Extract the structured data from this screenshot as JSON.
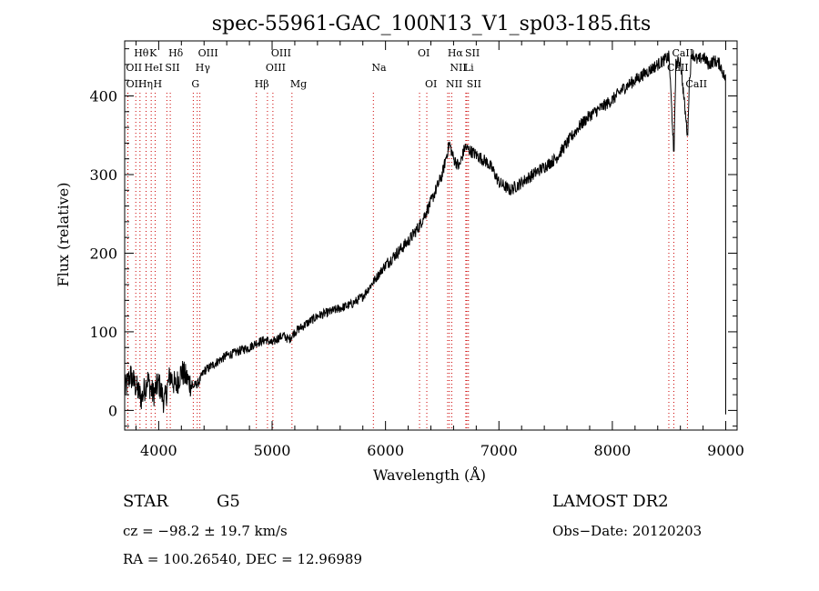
{
  "chart_data": {
    "type": "line",
    "title": "spec-55961-GAC_100N13_V1_sp03-185.fits",
    "xlabel": "Wavelength (Å)",
    "ylabel": "Flux (relative)",
    "xlim": [
      3700,
      9100
    ],
    "ylim": [
      -25,
      470
    ],
    "xticks": [
      4000,
      5000,
      6000,
      7000,
      8000,
      9000
    ],
    "yticks": [
      0,
      100,
      200,
      300,
      400
    ],
    "grid": false,
    "series": [
      {
        "x": [
          3700,
          3750,
          3800,
          3850,
          3900,
          3950,
          4000,
          4050,
          4100,
          4150,
          4200,
          4250,
          4300,
          4350,
          4400,
          4450,
          4500,
          4550,
          4600,
          4650,
          4700,
          4750,
          4800,
          4850,
          4900,
          4950,
          5000,
          5050,
          5100,
          5150,
          5200,
          5300,
          5400,
          5500,
          5600,
          5700,
          5800,
          5900,
          6000,
          6100,
          6200,
          6300,
          6400,
          6500,
          6563,
          6600,
          6650,
          6700,
          6750,
          6800,
          6850,
          6900,
          6950,
          7000,
          7050,
          7100,
          7150,
          7200,
          7300,
          7400,
          7500,
          7600,
          7700,
          7800,
          7900,
          8000,
          8100,
          8200,
          8300,
          8400,
          8450,
          8500,
          8542,
          8560,
          8600,
          8662,
          8680,
          8700,
          8750,
          8800,
          8850,
          8900,
          8950,
          9000
        ],
        "y": [
          25,
          45,
          30,
          15,
          40,
          20,
          35,
          10,
          45,
          30,
          50,
          40,
          30,
          35,
          50,
          55,
          60,
          65,
          70,
          72,
          75,
          78,
          80,
          85,
          88,
          90,
          85,
          92,
          95,
          90,
          100,
          110,
          120,
          125,
          130,
          135,
          145,
          165,
          185,
          200,
          215,
          235,
          265,
          300,
          340,
          320,
          310,
          335,
          330,
          325,
          320,
          315,
          305,
          290,
          285,
          280,
          285,
          290,
          300,
          310,
          320,
          340,
          360,
          375,
          385,
          395,
          410,
          420,
          430,
          440,
          445,
          450,
          330,
          440,
          445,
          350,
          420,
          455,
          445,
          450,
          440,
          445,
          440,
          420
        ]
      }
    ],
    "line_markers": [
      {
        "label": "Hθ",
        "x": 3798,
        "row": 1,
        "color": "#000000"
      },
      {
        "label": "K",
        "x": 3934,
        "row": 1,
        "color": "#000000"
      },
      {
        "label": "Hδ",
        "x": 4102,
        "row": 1,
        "color": "#000000"
      },
      {
        "label": "OIII",
        "x": 4363,
        "row": 1,
        "color": "#000000"
      },
      {
        "label": "OIII",
        "x": 5007,
        "row": 1,
        "color": "#000000"
      },
      {
        "label": "OI",
        "x": 6300,
        "row": 1,
        "color": "#000000"
      },
      {
        "label": "Hα",
        "x": 6563,
        "row": 1,
        "color": "#000000"
      },
      {
        "label": "SII",
        "x": 6717,
        "row": 1,
        "color": "#000000"
      },
      {
        "label": "CaII",
        "x": 8542,
        "row": 1,
        "color": "#000000"
      },
      {
        "label": "OII",
        "x": 3727,
        "row": 2,
        "color": "#000000"
      },
      {
        "label": "HeI",
        "x": 3889,
        "row": 2,
        "color": "#000000"
      },
      {
        "label": "SII",
        "x": 4072,
        "row": 2,
        "color": "#000000"
      },
      {
        "label": "Hγ",
        "x": 4340,
        "row": 2,
        "color": "#000000"
      },
      {
        "label": "OIII",
        "x": 4959,
        "row": 2,
        "color": "#000000"
      },
      {
        "label": "Na",
        "x": 5893,
        "row": 2,
        "color": "#000000"
      },
      {
        "label": "NII",
        "x": 6584,
        "row": 2,
        "color": "#000000"
      },
      {
        "label": "Li",
        "x": 6708,
        "row": 2,
        "color": "#000000"
      },
      {
        "label": "CaII",
        "x": 8498,
        "row": 2,
        "color": "#000000"
      },
      {
        "label": "OII",
        "x": 3729,
        "row": 3,
        "color": "#000000"
      },
      {
        "label": "Hη",
        "x": 3835,
        "row": 3,
        "color": "#000000"
      },
      {
        "label": "H",
        "x": 3969,
        "row": 3,
        "color": "#000000"
      },
      {
        "label": "G",
        "x": 4305,
        "row": 3,
        "color": "#000000"
      },
      {
        "label": "Hβ",
        "x": 4861,
        "row": 3,
        "color": "#000000"
      },
      {
        "label": "Mg",
        "x": 5175,
        "row": 3,
        "color": "#000000"
      },
      {
        "label": "OI",
        "x": 6364,
        "row": 3,
        "color": "#000000"
      },
      {
        "label": "NII",
        "x": 6548,
        "row": 3,
        "color": "#000000"
      },
      {
        "label": "SII",
        "x": 6731,
        "row": 3,
        "color": "#000000"
      },
      {
        "label": "CaII",
        "x": 8662,
        "row": 3,
        "color": "#000000"
      }
    ],
    "line_color": "#000000",
    "marker_line_color": "#cc0000"
  },
  "info": {
    "class": "STAR",
    "subclass": "G5",
    "survey": "LAMOST DR2",
    "cz": "cz = −98.2 ± 19.7 km/s",
    "obs_date": "Obs−Date: 20120203",
    "coords": "RA = 100.26540, DEC =  12.96989"
  }
}
